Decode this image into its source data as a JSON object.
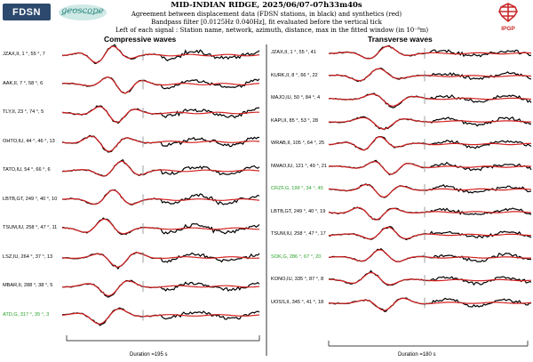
{
  "header": {
    "title": "MID-INDIAN RIDGE, 2025/06/07-07h33m40s",
    "subtitle1": "Agreement between displacement data (FDSN stations, in black) and synthetics (red)",
    "subtitle2": "Bandpass filter [0.0125Hz 0.040Hz], fit evaluated before the vertical tick",
    "subtitle3": "Left of each signal : Station name, network, azimuth, distance, max in the fitted window (in 10⁻⁸m)"
  },
  "logos": {
    "fdsn_text": "FDSN",
    "geoscope_text": "geoscope",
    "ipgp_text": "IPGP"
  },
  "colors": {
    "data": "#000000",
    "synthetic": "#d42020",
    "excluded": "#2aa12a",
    "ipgp": "#c92a2a"
  },
  "panels": [
    {
      "title": "Compressive waves",
      "duration": "Duration =195 s",
      "stations": [
        {
          "label": "JZAX,II, 1 °, 55 °, 7",
          "excluded": false
        },
        {
          "label": "AAK,II, 7 °, 58 °, 6",
          "excluded": false
        },
        {
          "label": "TLY,II, 23 °, 74 °, 5",
          "excluded": false
        },
        {
          "label": "OHTO,IU, 44 °, 46 °, 13",
          "excluded": false
        },
        {
          "label": "TATO,IU, 54 °, 66 °, 6",
          "excluded": false
        },
        {
          "label": "LBTB,GT, 249 °, 40 °, 10",
          "excluded": false
        },
        {
          "label": "TSUM,IU, 258 °, 47 °, 11",
          "excluded": false
        },
        {
          "label": "LSZ,IU, 264 °, 37 °, 13",
          "excluded": false
        },
        {
          "label": "MBAR,II, 288 °, 38 °, 5",
          "excluded": false
        },
        {
          "label": "ATD,G, 317 °, 35 °, 3",
          "excluded": true
        }
      ]
    },
    {
      "title": "Transverse waves",
      "duration": "Duration =180 s",
      "stations": [
        {
          "label": "JZAX,II, 1 °, 55 °, 41",
          "excluded": false
        },
        {
          "label": "KURK,II, 8 °, 66 °, 22",
          "excluded": false
        },
        {
          "label": "MAJO,IU, 50 °, 84 °, 4",
          "excluded": false
        },
        {
          "label": "KAPI,II, 85 °, 53 °, 28",
          "excluded": false
        },
        {
          "label": "WRAB,II, 105 °, 64 °, 25",
          "excluded": false
        },
        {
          "label": "NWAO,IU, 121 °, 49 °, 21",
          "excluded": false
        },
        {
          "label": "CRZF,G, 199 °, 34 °, 45",
          "excluded": true
        },
        {
          "label": "LBTB,GT, 249 °, 40 °, 19",
          "excluded": false
        },
        {
          "label": "TSUM,IU, 258 °, 47 °, 17",
          "excluded": false
        },
        {
          "label": "SOK,G, 286 °, 67 °, 20",
          "excluded": true
        },
        {
          "label": "KONO,IU, 335 °, 87 °, 8",
          "excluded": false
        },
        {
          "label": "UOSS,II, 345 °, 41 °, 18",
          "excluded": false
        }
      ]
    }
  ]
}
